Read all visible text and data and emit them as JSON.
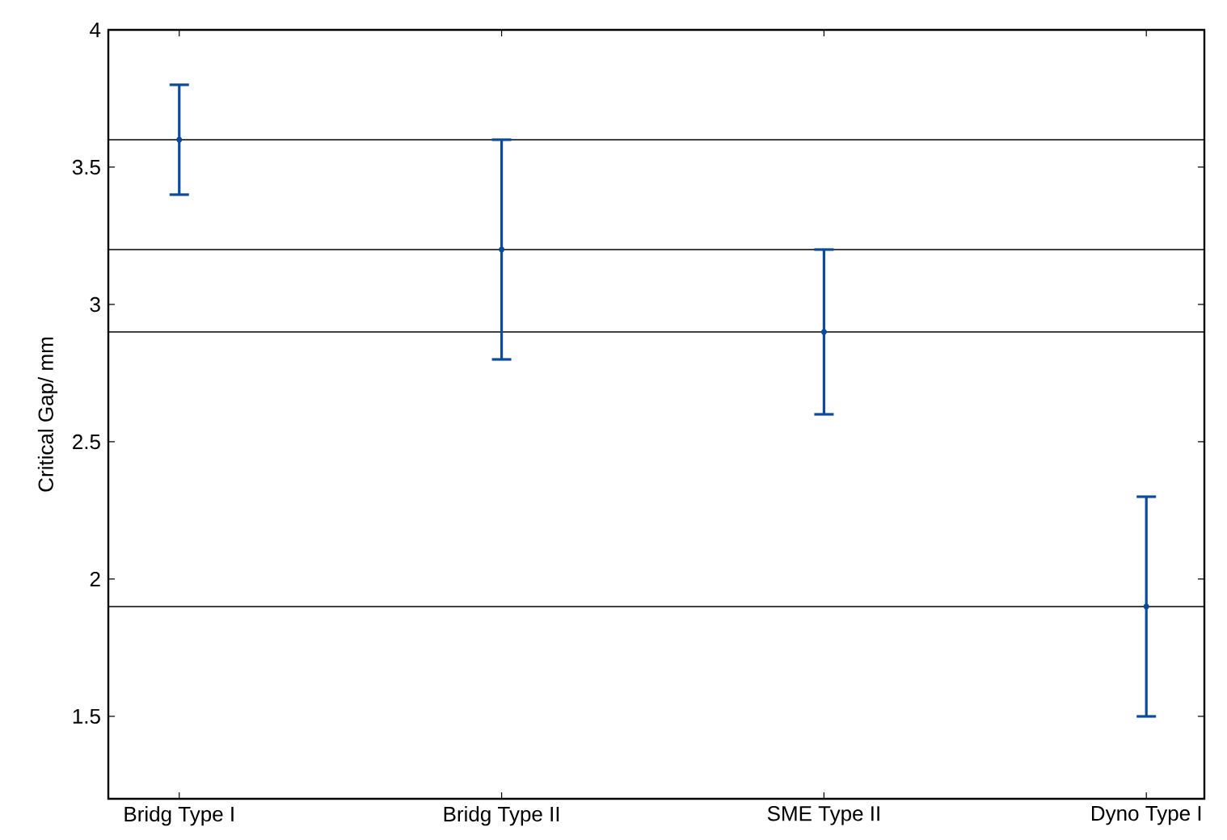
{
  "chart_data": {
    "type": "scatter",
    "ylabel": "Critical Gap/ mm",
    "categories": [
      "Bridg Type I",
      "Bridg Type II",
      "SME Type II",
      "Dyno Type I"
    ],
    "values": [
      3.6,
      3.2,
      2.9,
      1.9
    ],
    "errors": [
      [
        3.4,
        3.8
      ],
      [
        2.8,
        3.6
      ],
      [
        2.6,
        3.2
      ],
      [
        1.5,
        2.3
      ]
    ],
    "color": "#0b4a9c",
    "ylim": [
      1.2,
      4
    ],
    "yticks": [
      1.5,
      2,
      2.5,
      3,
      3.5,
      4
    ],
    "ref_lines": [
      {
        "axis": "y",
        "value": 3.6,
        "color": "#000000"
      },
      {
        "axis": "y",
        "value": 3.2,
        "color": "#000000"
      },
      {
        "axis": "y",
        "value": 2.9,
        "color": "#000000"
      },
      {
        "axis": "y",
        "value": 1.9,
        "color": "#000000"
      }
    ]
  }
}
